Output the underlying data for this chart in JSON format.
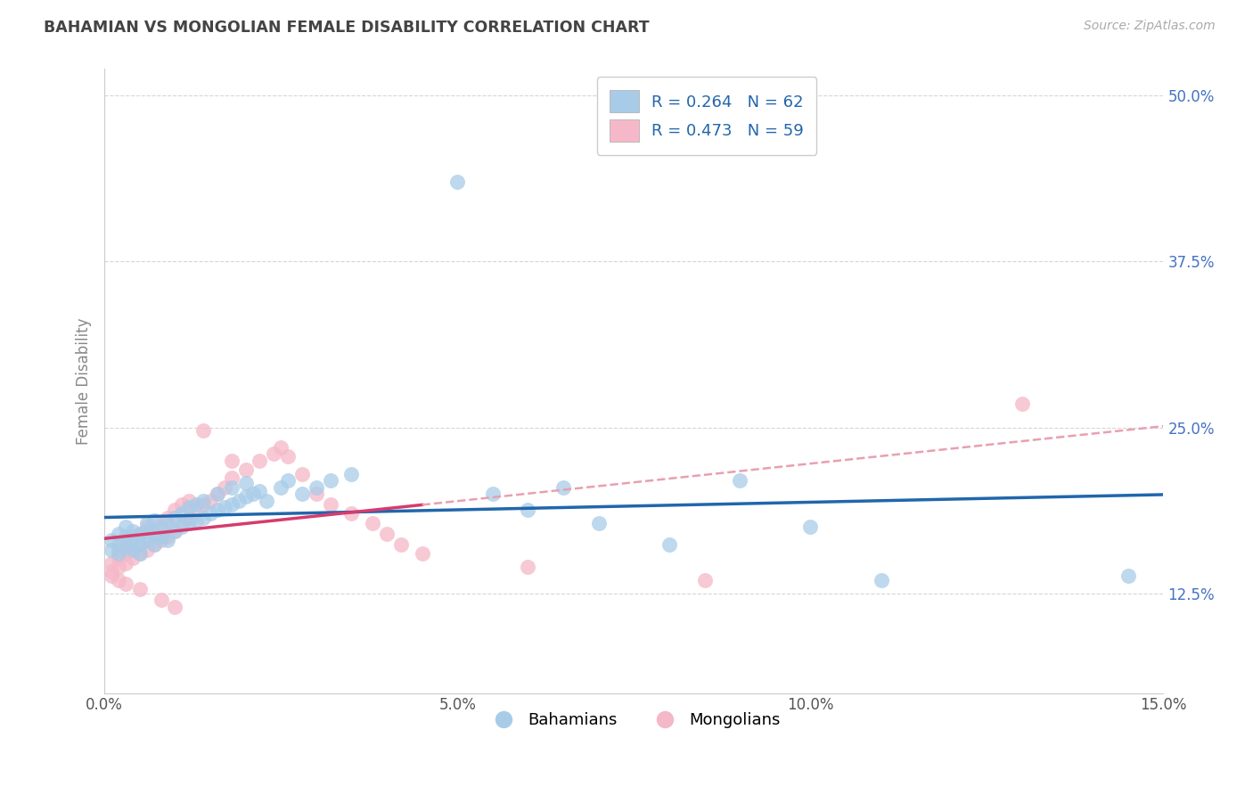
{
  "title": "BAHAMIAN VS MONGOLIAN FEMALE DISABILITY CORRELATION CHART",
  "source_text": "Source: ZipAtlas.com",
  "ylabel": "Female Disability",
  "xlim": [
    0.0,
    0.15
  ],
  "ylim": [
    0.05,
    0.52
  ],
  "xticks": [
    0.0,
    0.05,
    0.1,
    0.15
  ],
  "xtick_labels": [
    "0.0%",
    "5.0%",
    "10.0%",
    "15.0%"
  ],
  "yticks": [
    0.125,
    0.25,
    0.375,
    0.5
  ],
  "ytick_labels": [
    "12.5%",
    "25.0%",
    "37.5%",
    "50.0%"
  ],
  "R_blue": 0.264,
  "N_blue": 62,
  "R_pink": 0.473,
  "N_pink": 59,
  "blue_color": "#a8cce8",
  "pink_color": "#f5b8c8",
  "blue_line_color": "#2166ac",
  "pink_line_color": "#d63b6e",
  "dashed_line_color": "#e8a0b0",
  "legend_label_blue": "Bahamians",
  "legend_label_pink": "Mongolians",
  "blue_scatter": [
    [
      0.001,
      0.165
    ],
    [
      0.001,
      0.158
    ],
    [
      0.002,
      0.162
    ],
    [
      0.002,
      0.155
    ],
    [
      0.002,
      0.17
    ],
    [
      0.003,
      0.16
    ],
    [
      0.003,
      0.168
    ],
    [
      0.003,
      0.175
    ],
    [
      0.004,
      0.158
    ],
    [
      0.004,
      0.165
    ],
    [
      0.004,
      0.172
    ],
    [
      0.005,
      0.162
    ],
    [
      0.005,
      0.17
    ],
    [
      0.005,
      0.155
    ],
    [
      0.006,
      0.165
    ],
    [
      0.006,
      0.172
    ],
    [
      0.006,
      0.178
    ],
    [
      0.007,
      0.162
    ],
    [
      0.007,
      0.17
    ],
    [
      0.007,
      0.18
    ],
    [
      0.008,
      0.168
    ],
    [
      0.008,
      0.175
    ],
    [
      0.009,
      0.165
    ],
    [
      0.009,
      0.178
    ],
    [
      0.01,
      0.172
    ],
    [
      0.01,
      0.182
    ],
    [
      0.011,
      0.175
    ],
    [
      0.011,
      0.185
    ],
    [
      0.012,
      0.178
    ],
    [
      0.012,
      0.19
    ],
    [
      0.013,
      0.18
    ],
    [
      0.013,
      0.192
    ],
    [
      0.014,
      0.182
    ],
    [
      0.014,
      0.195
    ],
    [
      0.015,
      0.185
    ],
    [
      0.016,
      0.188
    ],
    [
      0.016,
      0.2
    ],
    [
      0.017,
      0.19
    ],
    [
      0.018,
      0.192
    ],
    [
      0.018,
      0.205
    ],
    [
      0.019,
      0.195
    ],
    [
      0.02,
      0.198
    ],
    [
      0.02,
      0.208
    ],
    [
      0.021,
      0.2
    ],
    [
      0.022,
      0.202
    ],
    [
      0.023,
      0.195
    ],
    [
      0.025,
      0.205
    ],
    [
      0.026,
      0.21
    ],
    [
      0.028,
      0.2
    ],
    [
      0.03,
      0.205
    ],
    [
      0.032,
      0.21
    ],
    [
      0.035,
      0.215
    ],
    [
      0.05,
      0.435
    ],
    [
      0.055,
      0.2
    ],
    [
      0.06,
      0.188
    ],
    [
      0.065,
      0.205
    ],
    [
      0.07,
      0.178
    ],
    [
      0.08,
      0.162
    ],
    [
      0.09,
      0.21
    ],
    [
      0.1,
      0.175
    ],
    [
      0.11,
      0.135
    ],
    [
      0.145,
      0.138
    ]
  ],
  "pink_scatter": [
    [
      0.001,
      0.148
    ],
    [
      0.001,
      0.138
    ],
    [
      0.001,
      0.142
    ],
    [
      0.002,
      0.145
    ],
    [
      0.002,
      0.152
    ],
    [
      0.002,
      0.158
    ],
    [
      0.002,
      0.135
    ],
    [
      0.003,
      0.148
    ],
    [
      0.003,
      0.155
    ],
    [
      0.003,
      0.162
    ],
    [
      0.003,
      0.132
    ],
    [
      0.004,
      0.152
    ],
    [
      0.004,
      0.16
    ],
    [
      0.004,
      0.168
    ],
    [
      0.005,
      0.155
    ],
    [
      0.005,
      0.162
    ],
    [
      0.005,
      0.17
    ],
    [
      0.005,
      0.128
    ],
    [
      0.006,
      0.158
    ],
    [
      0.006,
      0.168
    ],
    [
      0.006,
      0.175
    ],
    [
      0.007,
      0.162
    ],
    [
      0.007,
      0.172
    ],
    [
      0.008,
      0.165
    ],
    [
      0.008,
      0.178
    ],
    [
      0.008,
      0.12
    ],
    [
      0.009,
      0.168
    ],
    [
      0.009,
      0.182
    ],
    [
      0.01,
      0.172
    ],
    [
      0.01,
      0.188
    ],
    [
      0.01,
      0.115
    ],
    [
      0.011,
      0.178
    ],
    [
      0.011,
      0.192
    ],
    [
      0.012,
      0.182
    ],
    [
      0.012,
      0.195
    ],
    [
      0.013,
      0.188
    ],
    [
      0.014,
      0.192
    ],
    [
      0.014,
      0.248
    ],
    [
      0.015,
      0.195
    ],
    [
      0.016,
      0.2
    ],
    [
      0.017,
      0.205
    ],
    [
      0.018,
      0.212
    ],
    [
      0.018,
      0.225
    ],
    [
      0.02,
      0.218
    ],
    [
      0.022,
      0.225
    ],
    [
      0.024,
      0.23
    ],
    [
      0.025,
      0.235
    ],
    [
      0.026,
      0.228
    ],
    [
      0.028,
      0.215
    ],
    [
      0.03,
      0.2
    ],
    [
      0.032,
      0.192
    ],
    [
      0.035,
      0.185
    ],
    [
      0.038,
      0.178
    ],
    [
      0.04,
      0.17
    ],
    [
      0.042,
      0.162
    ],
    [
      0.045,
      0.155
    ],
    [
      0.06,
      0.145
    ],
    [
      0.085,
      0.135
    ],
    [
      0.13,
      0.268
    ]
  ]
}
